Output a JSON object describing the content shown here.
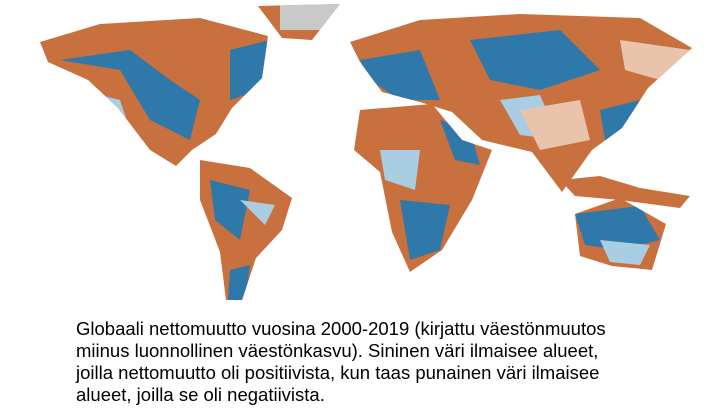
{
  "caption": {
    "lines": [
      "Globaali nettomuutto vuosina 2000-2019 (kirjattu väestönmuutos",
      "miinus luonnollinen väestönkasvu). Sininen väri ilmaisee alueet,",
      "joilla nettomuutto oli positiivista, kun taas punainen väri ilmaisee",
      "alueet, joilla se oli negatiivista."
    ]
  }
}
